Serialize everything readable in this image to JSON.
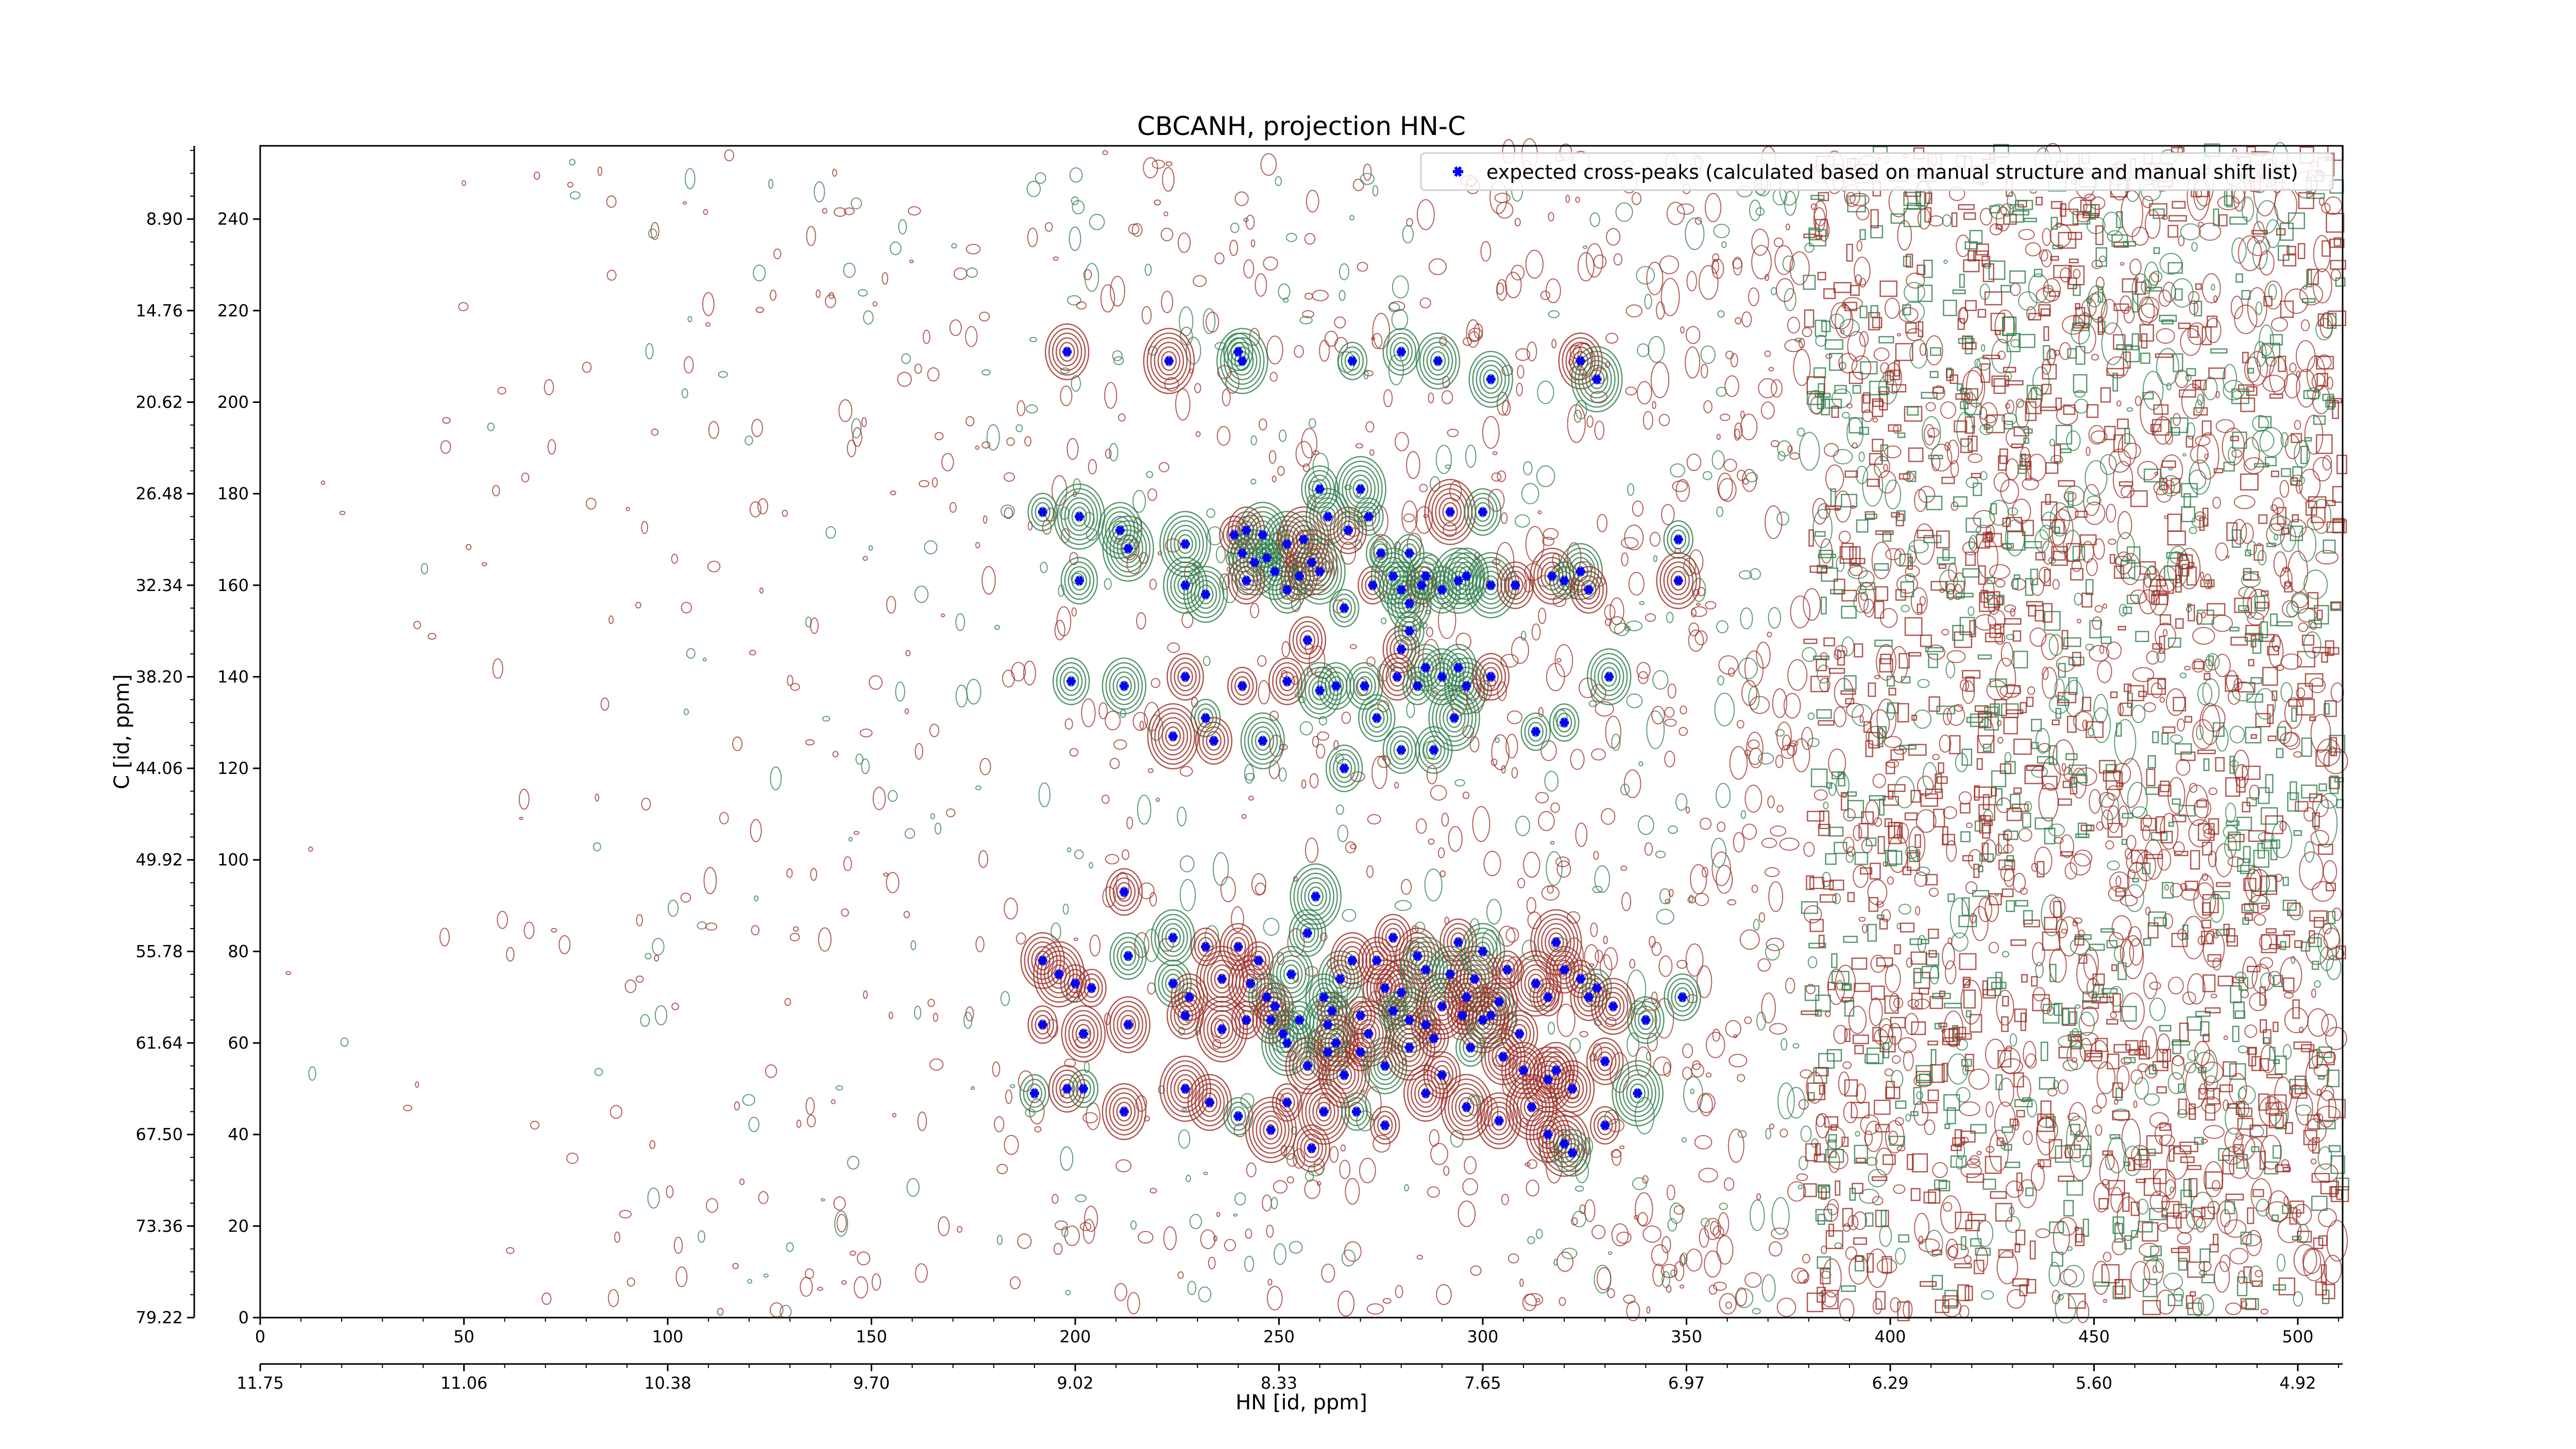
{
  "chart_data": {
    "type": "scatter",
    "title": "CBCANH, projection HN-C",
    "xlabel": "HN [id, ppm]",
    "ylabel": "C [id, ppm]",
    "xlim": [
      0,
      511
    ],
    "ylim": [
      0,
      256
    ],
    "bottom_x_ticks": [
      0,
      50,
      100,
      150,
      200,
      250,
      300,
      350,
      400,
      450,
      500
    ],
    "left_y_ticks": [
      0,
      20,
      40,
      60,
      80,
      100,
      120,
      140,
      160,
      180,
      200,
      220,
      240
    ],
    "ppm_x_axis": {
      "labels": [
        "11.75",
        "11.06",
        "10.38",
        "9.70",
        "9.02",
        "8.33",
        "7.65",
        "6.97",
        "6.29",
        "5.60",
        "4.92"
      ],
      "at": [
        0,
        50,
        100,
        150,
        200,
        250,
        300,
        350,
        400,
        450,
        500
      ]
    },
    "ppm_y_axis": {
      "labels": [
        "79.22",
        "73.36",
        "67.50",
        "61.64",
        "55.78",
        "49.92",
        "44.06",
        "38.20",
        "32.34",
        "26.48",
        "20.62",
        "14.76",
        "8.90"
      ],
      "at": [
        0,
        20,
        40,
        60,
        80,
        100,
        120,
        140,
        160,
        180,
        200,
        220,
        240
      ]
    },
    "legend": {
      "label": "expected cross-peaks (calculated based on manual structure and manual shift list)",
      "position": "upper-right",
      "marker_color": "#0000ff"
    },
    "colors": {
      "positive_contour": "#2e7d4a",
      "negative_contour": "#9b2d24",
      "marker": "#0000ff"
    },
    "series": [
      {
        "name": "expected cross-peaks (calculated based on manual structure and manual shift list)",
        "points": [
          [
            198,
            211
          ],
          [
            223,
            209
          ],
          [
            240,
            211
          ],
          [
            241,
            209
          ],
          [
            268,
            209
          ],
          [
            280,
            211
          ],
          [
            289,
            209
          ],
          [
            302,
            205
          ],
          [
            324,
            209
          ],
          [
            328,
            205
          ],
          [
            192,
            176
          ],
          [
            201,
            175
          ],
          [
            211,
            172
          ],
          [
            213,
            168
          ],
          [
            227,
            169
          ],
          [
            239,
            171
          ],
          [
            241,
            167
          ],
          [
            242,
            172
          ],
          [
            244,
            165
          ],
          [
            246,
            171
          ],
          [
            247,
            166
          ],
          [
            249,
            163
          ],
          [
            252,
            169
          ],
          [
            255,
            162
          ],
          [
            256,
            170
          ],
          [
            258,
            165
          ],
          [
            260,
            181
          ],
          [
            262,
            175
          ],
          [
            267,
            172
          ],
          [
            270,
            181
          ],
          [
            272,
            175
          ],
          [
            273,
            160
          ],
          [
            275,
            167
          ],
          [
            278,
            162
          ],
          [
            280,
            159
          ],
          [
            282,
            167
          ],
          [
            285,
            160
          ],
          [
            286,
            162
          ],
          [
            292,
            176
          ],
          [
            294,
            161
          ],
          [
            296,
            162
          ],
          [
            300,
            176
          ],
          [
            302,
            160
          ],
          [
            308,
            160
          ],
          [
            317,
            162
          ],
          [
            320,
            161
          ],
          [
            324,
            163
          ],
          [
            326,
            159
          ],
          [
            348,
            170
          ],
          [
            348,
            161
          ],
          [
            201,
            161
          ],
          [
            227,
            160
          ],
          [
            232,
            158
          ],
          [
            242,
            161
          ],
          [
            252,
            159
          ],
          [
            260,
            163
          ],
          [
            266,
            155
          ],
          [
            282,
            156
          ],
          [
            290,
            159
          ],
          [
            199,
            139
          ],
          [
            212,
            138
          ],
          [
            227,
            140
          ],
          [
            232,
            131
          ],
          [
            241,
            138
          ],
          [
            246,
            126
          ],
          [
            252,
            139
          ],
          [
            257,
            148
          ],
          [
            260,
            137
          ],
          [
            264,
            138
          ],
          [
            271,
            138
          ],
          [
            274,
            131
          ],
          [
            279,
            140
          ],
          [
            280,
            146
          ],
          [
            282,
            150
          ],
          [
            284,
            138
          ],
          [
            286,
            142
          ],
          [
            290,
            140
          ],
          [
            293,
            131
          ],
          [
            294,
            142
          ],
          [
            296,
            138
          ],
          [
            302,
            140
          ],
          [
            313,
            128
          ],
          [
            320,
            130
          ],
          [
            331,
            140
          ],
          [
            224,
            127
          ],
          [
            234,
            126
          ],
          [
            280,
            124
          ],
          [
            288,
            124
          ],
          [
            266,
            120
          ],
          [
            212,
            93
          ],
          [
            224,
            83
          ],
          [
            224,
            73
          ],
          [
            228,
            70
          ],
          [
            232,
            81
          ],
          [
            236,
            74
          ],
          [
            240,
            81
          ],
          [
            243,
            73
          ],
          [
            245,
            78
          ],
          [
            247,
            70
          ],
          [
            249,
            68
          ],
          [
            251,
            62
          ],
          [
            253,
            75
          ],
          [
            255,
            65
          ],
          [
            257,
            84
          ],
          [
            259,
            92
          ],
          [
            261,
            70
          ],
          [
            263,
            67
          ],
          [
            265,
            74
          ],
          [
            268,
            78
          ],
          [
            270,
            66
          ],
          [
            272,
            62
          ],
          [
            274,
            78
          ],
          [
            276,
            72
          ],
          [
            278,
            83
          ],
          [
            280,
            71
          ],
          [
            282,
            65
          ],
          [
            284,
            79
          ],
          [
            286,
            76
          ],
          [
            288,
            61
          ],
          [
            290,
            68
          ],
          [
            292,
            75
          ],
          [
            294,
            82
          ],
          [
            296,
            70
          ],
          [
            298,
            74
          ],
          [
            300,
            80
          ],
          [
            302,
            66
          ],
          [
            304,
            69
          ],
          [
            306,
            76
          ],
          [
            309,
            62
          ],
          [
            313,
            73
          ],
          [
            316,
            70
          ],
          [
            318,
            82
          ],
          [
            320,
            76
          ],
          [
            324,
            74
          ],
          [
            326,
            70
          ],
          [
            328,
            72
          ],
          [
            262,
            58
          ],
          [
            266,
            53
          ],
          [
            270,
            58
          ],
          [
            276,
            55
          ],
          [
            282,
            59
          ],
          [
            290,
            53
          ],
          [
            297,
            59
          ],
          [
            305,
            57
          ],
          [
            310,
            54
          ],
          [
            316,
            52
          ],
          [
            318,
            54
          ],
          [
            322,
            50
          ],
          [
            330,
            56
          ],
          [
            192,
            78
          ],
          [
            196,
            75
          ],
          [
            200,
            73
          ],
          [
            204,
            72
          ],
          [
            192,
            64
          ],
          [
            202,
            62
          ],
          [
            213,
            64
          ],
          [
            213,
            79
          ],
          [
            227,
            66
          ],
          [
            236,
            63
          ],
          [
            242,
            65
          ],
          [
            248,
            65
          ],
          [
            252,
            60
          ],
          [
            257,
            55
          ],
          [
            262,
            64
          ],
          [
            264,
            60
          ],
          [
            278,
            67
          ],
          [
            286,
            64
          ],
          [
            295,
            66
          ],
          [
            300,
            65
          ],
          [
            332,
            68
          ],
          [
            340,
            65
          ],
          [
            349,
            70
          ],
          [
            190,
            49
          ],
          [
            198,
            50
          ],
          [
            202,
            50
          ],
          [
            212,
            45
          ],
          [
            227,
            50
          ],
          [
            233,
            47
          ],
          [
            240,
            44
          ],
          [
            248,
            41
          ],
          [
            252,
            47
          ],
          [
            258,
            37
          ],
          [
            261,
            45
          ],
          [
            269,
            45
          ],
          [
            276,
            42
          ],
          [
            286,
            49
          ],
          [
            296,
            46
          ],
          [
            304,
            43
          ],
          [
            312,
            46
          ],
          [
            316,
            40
          ],
          [
            320,
            38
          ],
          [
            330,
            42
          ],
          [
            338,
            49
          ],
          [
            322,
            36
          ]
        ]
      }
    ]
  }
}
